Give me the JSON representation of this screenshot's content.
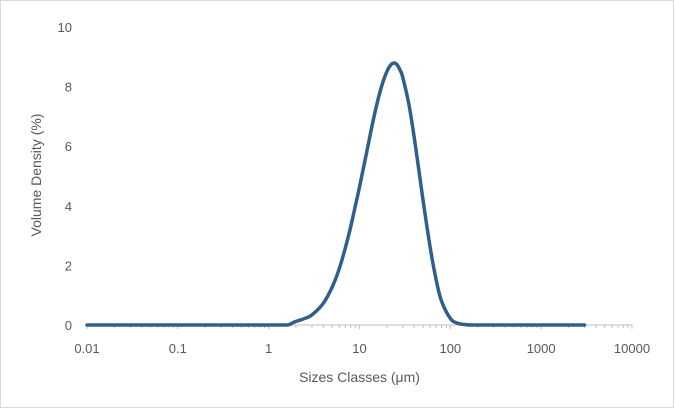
{
  "chart_data": {
    "type": "line",
    "title": "",
    "xlabel": "Sizes Classes (μm)",
    "ylabel": "Volume Density (%)",
    "x_scale": "log",
    "xlim": [
      0.01,
      10000
    ],
    "ylim": [
      0,
      10
    ],
    "x_ticks": [
      "0.01",
      "0.1",
      "1",
      "10",
      "100",
      "1000",
      "10000"
    ],
    "y_ticks": [
      "0",
      "2",
      "4",
      "6",
      "8",
      "10"
    ],
    "grid": false,
    "legend": "none",
    "line_color": "#2f5f8a",
    "series": [
      {
        "x": [
          0.01,
          0.1,
          1,
          1.6,
          1.8,
          2.0,
          2.5,
          3,
          4,
          5,
          6,
          7,
          8,
          9,
          10,
          12,
          14,
          16,
          18,
          20,
          22,
          24,
          26,
          28,
          30,
          35,
          40,
          45,
          50,
          60,
          70,
          80,
          100,
          120,
          150,
          180,
          250,
          1000,
          3000
        ],
        "values": [
          0,
          0,
          0,
          0,
          0.06,
          0.12,
          0.22,
          0.34,
          0.73,
          1.27,
          1.9,
          2.6,
          3.3,
          4.0,
          4.63,
          5.8,
          6.8,
          7.57,
          8.13,
          8.5,
          8.72,
          8.79,
          8.73,
          8.55,
          8.3,
          7.4,
          6.3,
          5.2,
          4.2,
          2.6,
          1.5,
          0.8,
          0.22,
          0.06,
          0.01,
          0,
          0,
          0,
          0
        ]
      }
    ]
  }
}
